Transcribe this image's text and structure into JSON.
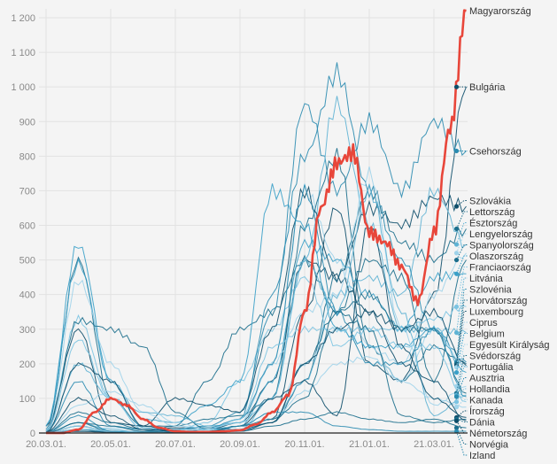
{
  "chart_data": {
    "type": "line",
    "title": "",
    "xlabel": "",
    "ylabel": "",
    "ylim": [
      0,
      1200
    ],
    "yticks": [
      "0",
      "100",
      "200",
      "300",
      "400",
      "500",
      "600",
      "700",
      "800",
      "900",
      "1 000",
      "1 100",
      "1 200"
    ],
    "ytick_values": [
      0,
      100,
      200,
      300,
      400,
      500,
      600,
      700,
      800,
      900,
      1000,
      1100,
      1200
    ],
    "xticks": [
      "20.03.01.",
      "20.05.01.",
      "20.07.01.",
      "20.09.01.",
      "20.11.01.",
      "21.01.01.",
      "21.03.01."
    ],
    "xtick_months": [
      0,
      2,
      4,
      6,
      8,
      10,
      12
    ],
    "grid": true,
    "x_note": "x values are months since 2020-03-01",
    "highlight": {
      "name": "Magyarország",
      "color": "#e8463a",
      "x": [
        0,
        0.5,
        1,
        1.5,
        2,
        2.5,
        3,
        3.5,
        4,
        4.5,
        5,
        5.5,
        6,
        6.5,
        7,
        7.5,
        8,
        8.5,
        9,
        9.5,
        10,
        10.5,
        11,
        11.5,
        12,
        12.5,
        13
      ],
      "values": [
        0,
        0,
        10,
        60,
        100,
        80,
        40,
        15,
        5,
        3,
        3,
        5,
        8,
        25,
        60,
        110,
        350,
        650,
        780,
        810,
        580,
        550,
        480,
        380,
        580,
        880,
        1220
      ]
    },
    "x": [
      0,
      1,
      2,
      3,
      4,
      5,
      6,
      7,
      8,
      9,
      10,
      11,
      12,
      13
    ],
    "series": [
      {
        "name": "Bulgária",
        "color": "#0d4e6a",
        "values": [
          0,
          5,
          5,
          5,
          15,
          15,
          10,
          40,
          350,
          650,
          200,
          150,
          400,
          1000
        ]
      },
      {
        "name": "Csehország",
        "color": "#2a8bb0",
        "values": [
          0,
          20,
          5,
          5,
          10,
          20,
          60,
          350,
          950,
          700,
          900,
          700,
          900,
          815
        ]
      },
      {
        "name": "Szlovákia",
        "color": "#0d4e6a",
        "values": [
          0,
          5,
          2,
          2,
          5,
          10,
          30,
          150,
          500,
          450,
          650,
          600,
          680,
          655
        ]
      },
      {
        "name": "Lettország",
        "color": "#1b6e8c",
        "values": [
          0,
          10,
          5,
          2,
          2,
          2,
          10,
          30,
          150,
          450,
          700,
          550,
          500,
          590
        ]
      },
      {
        "name": "Észtország",
        "color": "#5fb3d4",
        "values": [
          0,
          30,
          10,
          2,
          2,
          5,
          10,
          40,
          150,
          400,
          450,
          400,
          700,
          545
        ]
      },
      {
        "name": "Lengyelország",
        "color": "#9fd3ea",
        "values": [
          0,
          10,
          15,
          10,
          10,
          15,
          30,
          200,
          700,
          500,
          250,
          200,
          400,
          520
        ]
      },
      {
        "name": "Spanyolország",
        "color": "#1b6e8c",
        "values": [
          10,
          500,
          100,
          20,
          20,
          150,
          300,
          350,
          500,
          350,
          500,
          450,
          150,
          500
        ]
      },
      {
        "name": "Olaszország",
        "color": "#3aa0c8",
        "values": [
          20,
          490,
          150,
          15,
          5,
          10,
          20,
          150,
          550,
          500,
          400,
          300,
          450,
          460
        ]
      },
      {
        "name": "Franciaország",
        "color": "#7cc4e2",
        "values": [
          10,
          330,
          100,
          10,
          10,
          30,
          150,
          300,
          450,
          250,
          300,
          300,
          330,
          365
        ]
      },
      {
        "name": "Litvánia",
        "color": "#5fb3d4",
        "values": [
          0,
          10,
          5,
          2,
          2,
          5,
          10,
          100,
          500,
          950,
          600,
          300,
          300,
          290
        ]
      },
      {
        "name": "Szlovénia",
        "color": "#2a8bb0",
        "values": [
          0,
          20,
          5,
          2,
          5,
          10,
          40,
          400,
          800,
          1040,
          700,
          500,
          300,
          205
        ]
      },
      {
        "name": "Horvátország",
        "color": "#1b6e8c",
        "values": [
          0,
          30,
          5,
          5,
          20,
          40,
          50,
          100,
          600,
          800,
          250,
          150,
          250,
          200
        ]
      },
      {
        "name": "Luxembourg",
        "color": "#0d4e6a",
        "values": [
          20,
          300,
          30,
          20,
          100,
          80,
          60,
          300,
          700,
          450,
          350,
          300,
          350,
          195
        ]
      },
      {
        "name": "Ciprus",
        "color": "#9fd3ea",
        "values": [
          0,
          20,
          5,
          5,
          5,
          5,
          20,
          60,
          200,
          300,
          250,
          150,
          300,
          190
        ]
      },
      {
        "name": "Belgium",
        "color": "#3aa0c8",
        "values": [
          20,
          545,
          150,
          40,
          30,
          80,
          150,
          700,
          600,
          300,
          250,
          250,
          300,
          175
        ]
      },
      {
        "name": "Egyesült Királyság",
        "color": "#9fd3ea",
        "values": [
          5,
          440,
          200,
          60,
          20,
          15,
          30,
          200,
          350,
          400,
          750,
          300,
          80,
          135
        ]
      },
      {
        "name": "Svédország",
        "color": "#1b6e8c",
        "values": [
          5,
          325,
          300,
          250,
          60,
          10,
          10,
          30,
          200,
          350,
          400,
          300,
          300,
          115
        ]
      },
      {
        "name": "Portugália",
        "color": "#5fb3d4",
        "values": [
          0,
          200,
          100,
          60,
          50,
          20,
          30,
          100,
          500,
          350,
          700,
          350,
          50,
          110
        ]
      },
      {
        "name": "Ausztria",
        "color": "#2a8bb0",
        "values": [
          5,
          150,
          20,
          10,
          10,
          15,
          40,
          200,
          700,
          350,
          200,
          200,
          300,
          105
        ]
      },
      {
        "name": "Hollandia",
        "color": "#7cc4e2",
        "values": [
          5,
          270,
          100,
          10,
          5,
          10,
          40,
          250,
          300,
          300,
          300,
          250,
          250,
          90
        ]
      },
      {
        "name": "Kanada",
        "color": "#9fd3ea",
        "values": [
          0,
          80,
          120,
          80,
          30,
          10,
          10,
          40,
          120,
          200,
          220,
          150,
          100,
          75
        ]
      },
      {
        "name": "Írország",
        "color": "#0d4e6a",
        "values": [
          2,
          200,
          150,
          20,
          5,
          5,
          20,
          100,
          150,
          50,
          600,
          250,
          100,
          45
        ]
      },
      {
        "name": "Dánia",
        "color": "#1b6e8c",
        "values": [
          2,
          60,
          30,
          10,
          5,
          5,
          20,
          40,
          100,
          350,
          300,
          50,
          30,
          40
        ]
      },
      {
        "name": "Németország",
        "color": "#0d4e6a",
        "values": [
          2,
          100,
          50,
          10,
          5,
          5,
          5,
          30,
          200,
          300,
          350,
          200,
          150,
          35
        ]
      },
      {
        "name": "Izland",
        "color": "#2a8bb0",
        "values": [
          0,
          50,
          5,
          0,
          0,
          0,
          20,
          60,
          60,
          20,
          10,
          5,
          5,
          5
        ]
      },
      {
        "name": "Norvégia",
        "color": "#1b6e8c",
        "values": [
          0,
          30,
          20,
          5,
          2,
          2,
          5,
          20,
          40,
          60,
          40,
          30,
          40,
          15
        ]
      }
    ]
  }
}
